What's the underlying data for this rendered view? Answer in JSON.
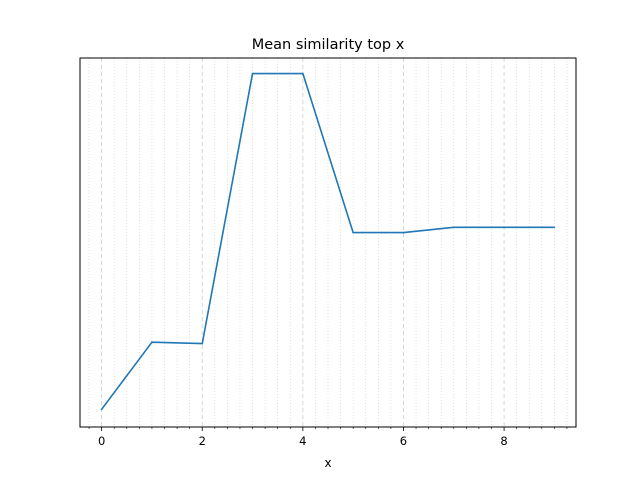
{
  "chart_data": {
    "type": "line",
    "title": "Mean similarity top x",
    "xlabel": "x",
    "ylabel": "",
    "x": [
      0,
      1,
      2,
      3,
      4,
      5,
      6,
      7,
      8,
      9
    ],
    "series": [
      {
        "values": [
          0.05,
          0.24,
          0.236,
          1.0,
          1.0,
          0.55,
          0.55,
          0.565,
          0.565,
          0.565
        ]
      }
    ],
    "xlim": [
      -0.43,
      9.43
    ],
    "ylim": [
      0.0,
      1.044
    ],
    "xticks": [
      0,
      2,
      4,
      6,
      8
    ],
    "x_tick_labels": [
      "0",
      "2",
      "4",
      "6",
      "8"
    ],
    "x_minor_step": 0.25,
    "y_tick_labels_shown": false,
    "grid": {
      "major": true,
      "minor": true,
      "style": "dashed",
      "axis": "x"
    },
    "line_color": "#1f77b4",
    "grid_color": "#cccccc"
  }
}
